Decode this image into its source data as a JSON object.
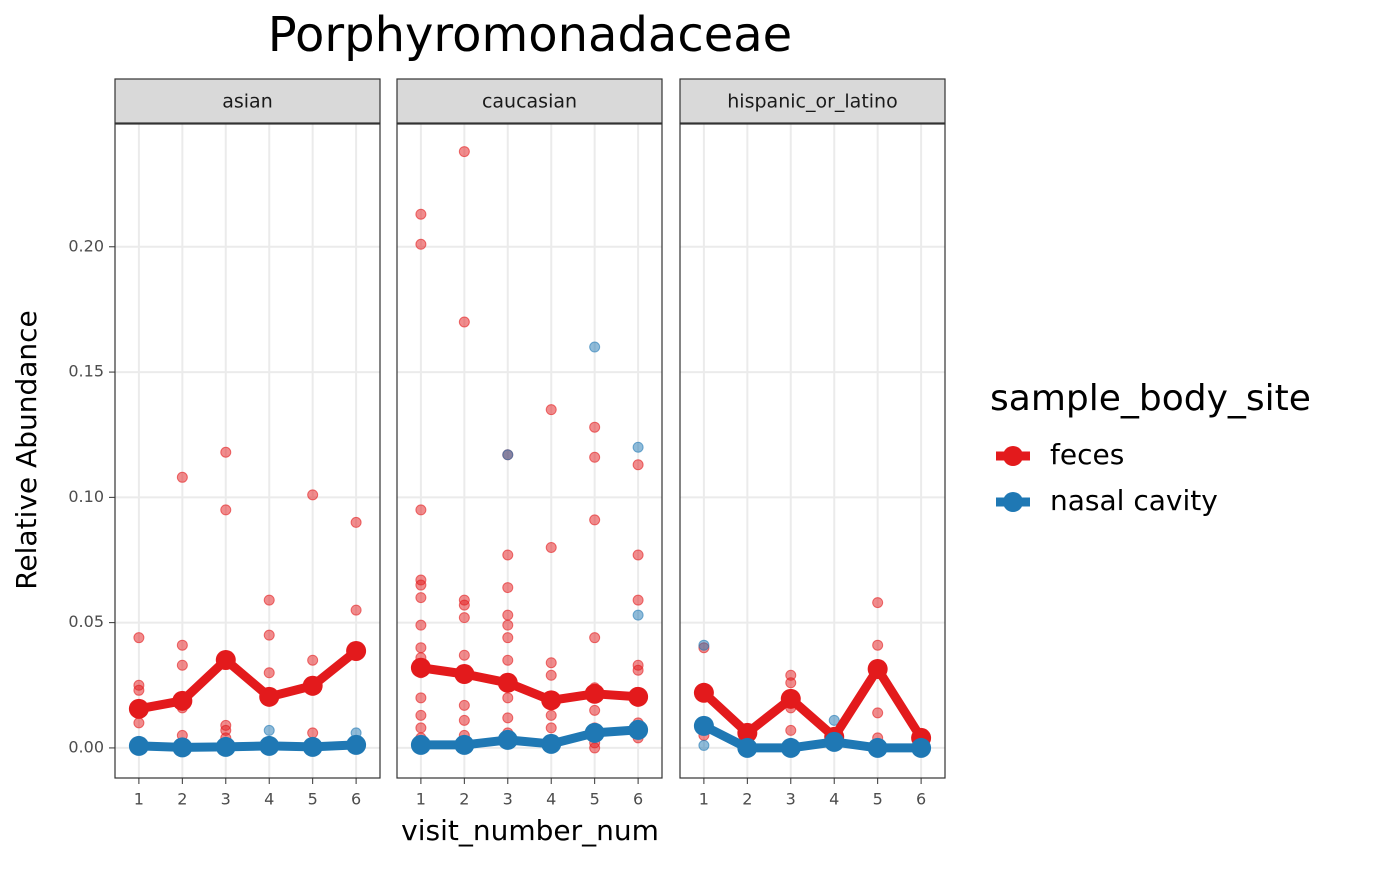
{
  "chart_data": {
    "type": "line",
    "title": "Porphyromonadaceae",
    "x_label": "visit_number_num",
    "y_label": "Relative Abundance",
    "legend_title": "sample_body_site",
    "x": [
      1,
      2,
      3,
      4,
      5,
      6
    ],
    "xlim": [
      0.45,
      6.55
    ],
    "xticks": [
      1,
      2,
      3,
      4,
      5,
      6
    ],
    "ylim": [
      -0.012,
      0.249
    ],
    "yticks": [
      {
        "value": 0,
        "label": "0.00"
      },
      0.05,
      {
        "value": 0.1,
        "label": "0.10"
      },
      0.15,
      {
        "value": 0.2,
        "label": "0.20"
      }
    ],
    "grid": true,
    "series": [
      {
        "name": "feces",
        "color": "#e31a1c"
      },
      {
        "name": "nasal cavity",
        "color": "#1f78b4"
      }
    ],
    "facets": [
      {
        "name": "asian",
        "lines": [
          [
            0.0156,
            0.0188,
            0.0351,
            0.0204,
            0.0248,
            0.0387
          ],
          [
            0.0008,
            0.0002,
            0.0004,
            0.0008,
            0.0004,
            0.0012
          ]
        ],
        "points": [
          {
            "x": [
              1,
              1,
              1,
              1,
              1,
              2,
              2,
              2,
              2,
              2,
              3,
              3,
              3,
              3,
              3,
              4,
              4,
              4,
              4,
              5,
              5,
              5,
              5,
              6,
              6,
              6,
              6
            ],
            "y": [
              0.044,
              0.025,
              0.023,
              0.015,
              0.01,
              0.108,
              0.041,
              0.033,
              0.016,
              0.005,
              0.118,
              0.095,
              0.009,
              0.007,
              0.004,
              0.059,
              0.045,
              0.03,
              0.001,
              0.101,
              0.035,
              0.023,
              0.006,
              0.09,
              0.055,
              0.038,
              0.003
            ]
          },
          {
            "x": [
              1,
              4,
              6
            ],
            "y": [
              0.002,
              0.007,
              0.006
            ]
          }
        ]
      },
      {
        "name": "caucasian",
        "lines": [
          [
            0.032,
            0.0295,
            0.026,
            0.019,
            0.0216,
            0.0204
          ],
          [
            0.0012,
            0.0012,
            0.0032,
            0.0016,
            0.006,
            0.0072
          ]
        ],
        "points": [
          {
            "x": [
              1,
              1,
              1,
              1,
              1,
              1,
              1,
              1,
              1,
              1,
              1,
              1,
              1,
              1,
              2,
              2,
              2,
              2,
              2,
              2,
              2,
              2,
              2,
              2,
              3,
              3,
              3,
              3,
              3,
              3,
              3,
              3,
              3,
              3,
              3,
              4,
              4,
              4,
              4,
              4,
              4,
              4,
              4,
              5,
              5,
              5,
              5,
              5,
              5,
              5,
              5,
              5,
              6,
              6,
              6,
              6,
              6,
              6,
              6,
              6
            ],
            "y": [
              0.213,
              0.201,
              0.095,
              0.067,
              0.065,
              0.06,
              0.049,
              0.04,
              0.036,
              0.03,
              0.02,
              0.013,
              0.008,
              0.004,
              0.238,
              0.17,
              0.059,
              0.057,
              0.052,
              0.037,
              0.03,
              0.017,
              0.011,
              0.005,
              0.117,
              0.077,
              0.064,
              0.053,
              0.049,
              0.044,
              0.035,
              0.025,
              0.02,
              0.012,
              0.006,
              0.135,
              0.08,
              0.034,
              0.029,
              0.02,
              0.013,
              0.008,
              0.003,
              0.128,
              0.116,
              0.091,
              0.044,
              0.024,
              0.015,
              0.008,
              0.002,
              0,
              0.113,
              0.077,
              0.059,
              0.033,
              0.031,
              0.021,
              0.01,
              0.004
            ]
          },
          {
            "x": [
              3,
              5,
              6,
              6
            ],
            "y": [
              0.117,
              0.16,
              0.12,
              0.053
            ]
          }
        ]
      },
      {
        "name": "hispanic_or_latino",
        "lines": [
          [
            0.022,
            0.006,
            0.0196,
            0.0044,
            0.0315,
            0.004
          ],
          [
            0.0088,
            0,
            0,
            0.0024,
            0,
            0
          ]
        ],
        "points": [
          {
            "x": [
              1,
              1,
              1,
              2,
              3,
              3,
              3,
              3,
              4,
              5,
              5,
              5,
              5,
              6
            ],
            "y": [
              0.04,
              0.022,
              0.005,
              0.005,
              0.029,
              0.026,
              0.016,
              0.007,
              0.005,
              0.058,
              0.041,
              0.014,
              0.004,
              0.003
            ]
          },
          {
            "x": [
              1,
              1,
              4
            ],
            "y": [
              0.041,
              0.001,
              0.011
            ]
          }
        ]
      }
    ]
  }
}
